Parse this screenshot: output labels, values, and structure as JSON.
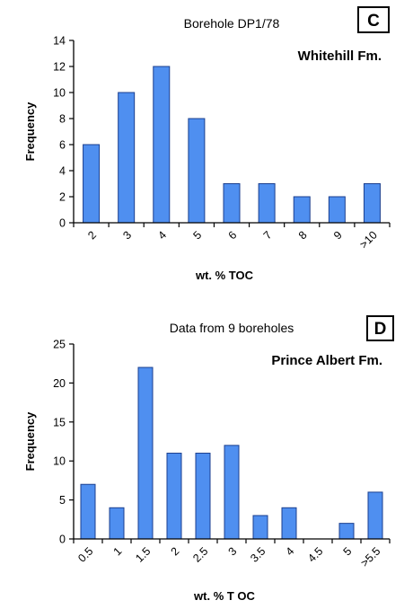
{
  "chart_data": [
    {
      "type": "bar",
      "panel": "C",
      "title": "Borehole DP1/78",
      "formation": "Whitehill Fm.",
      "xlabel": "wt. % TOC",
      "ylabel": "Frequency",
      "ylim": [
        0,
        14
      ],
      "yticks": [
        0,
        2,
        4,
        6,
        8,
        10,
        12,
        14
      ],
      "tick_labels": [
        "2",
        "3",
        "4",
        "5",
        "6",
        "7",
        "8",
        "9",
        ">10"
      ],
      "values": [
        6,
        10,
        12,
        8,
        3,
        3,
        2,
        2,
        3
      ],
      "bar_color": "#4f8ff0",
      "grid": false
    },
    {
      "type": "bar",
      "panel": "D",
      "title": "Data from 9 boreholes",
      "formation": "Prince Albert Fm.",
      "xlabel": "wt. % T OC",
      "ylabel": "Frequency",
      "ylim": [
        0,
        25
      ],
      "yticks": [
        0,
        5,
        10,
        15,
        20,
        25
      ],
      "tick_labels": [
        "0.5",
        "1",
        "1.5",
        "2",
        "2.5",
        "3",
        "3.5",
        "4",
        "4.5",
        "5",
        ">5.5"
      ],
      "values": [
        7,
        4,
        22,
        11,
        11,
        12,
        3,
        4,
        0,
        2,
        6
      ],
      "bar_color": "#4f8ff0",
      "grid": false
    }
  ]
}
